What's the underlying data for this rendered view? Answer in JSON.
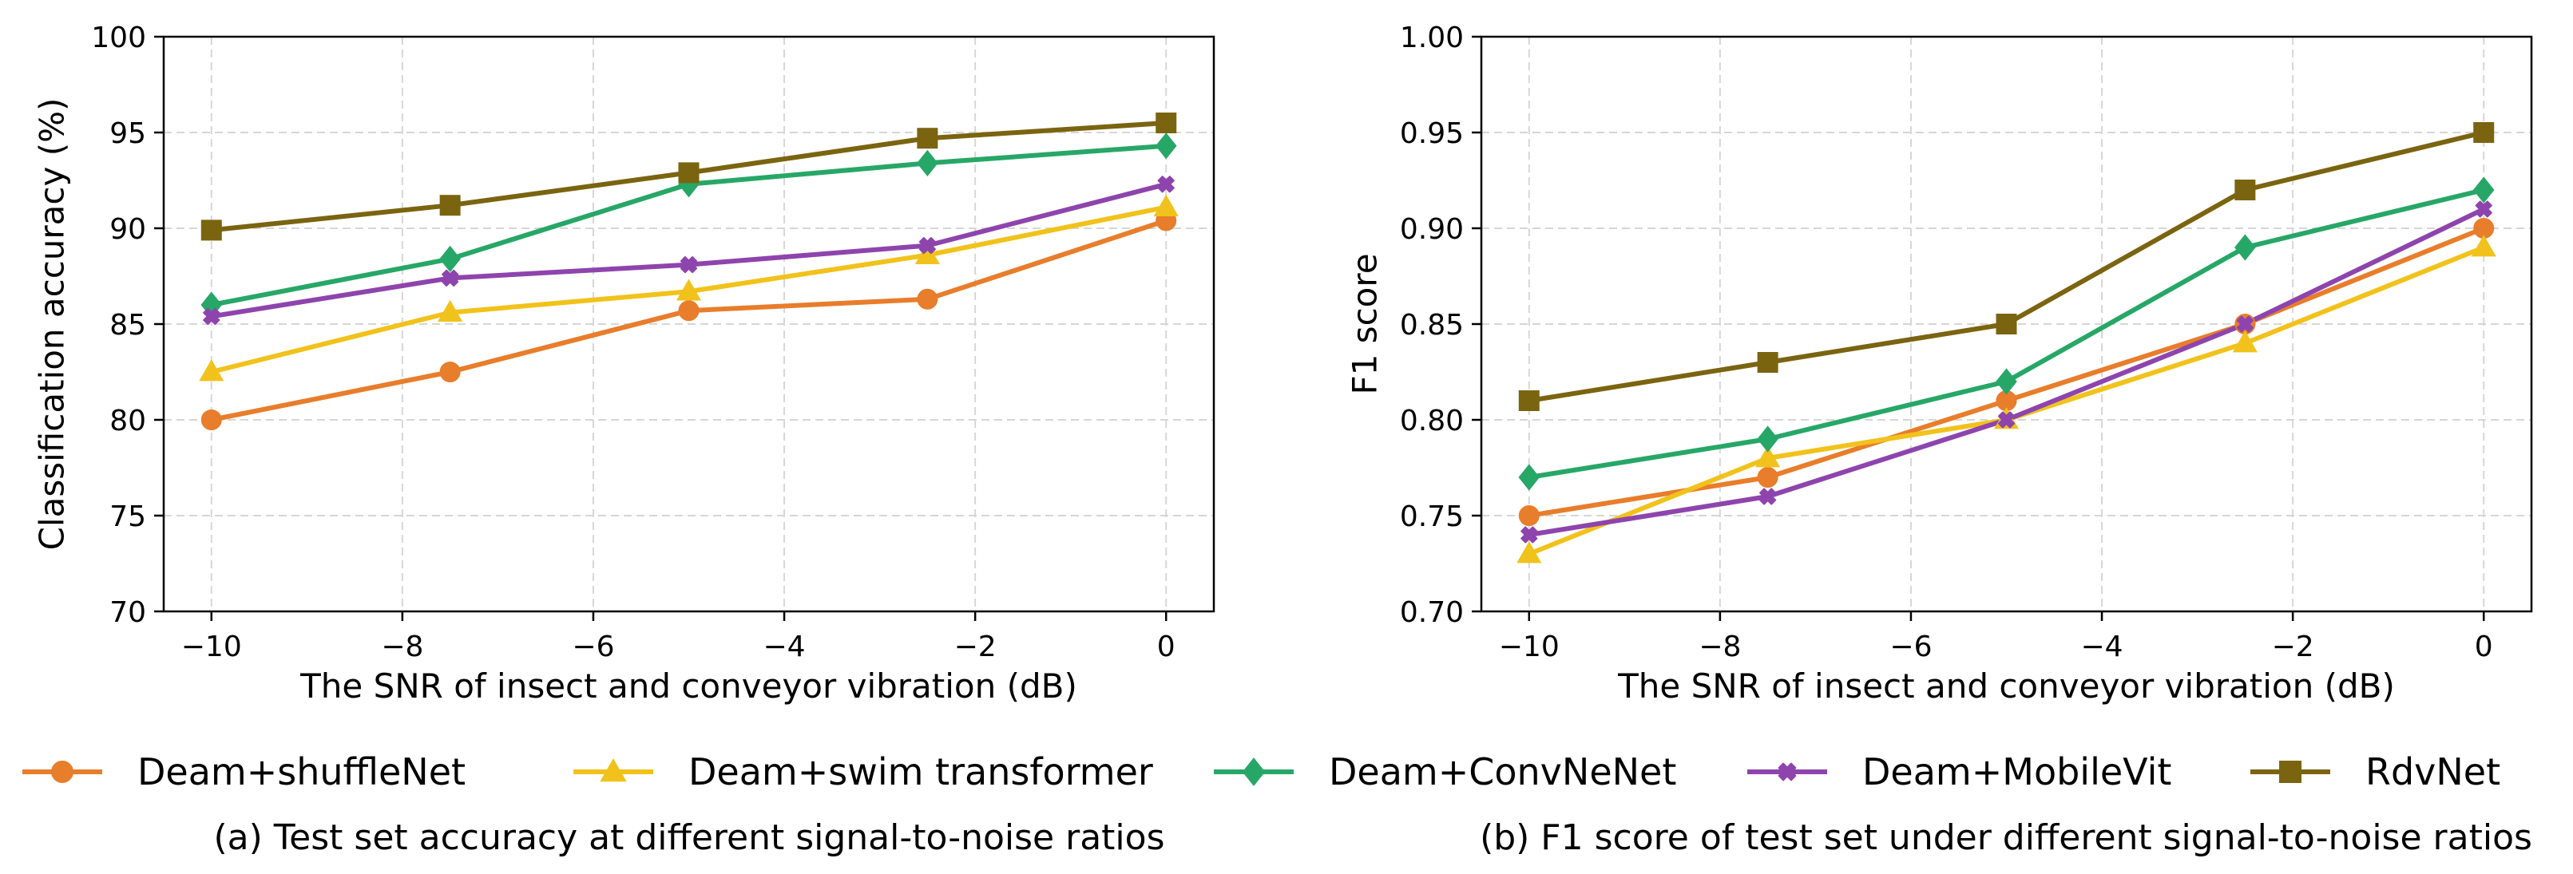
{
  "colors": {
    "shufflenet": "#E87D2B",
    "swim": "#F1C21B",
    "convnenet": "#27A767",
    "mobilevit": "#8E44AD",
    "rdvnet": "#7B6410"
  },
  "legend": [
    {
      "label": "Deam+shuffleNet",
      "marker": "circle",
      "color": "#E87D2B"
    },
    {
      "label": "Deam+swim transformer",
      "marker": "triangle",
      "color": "#F1C21B"
    },
    {
      "label": "Deam+ConvNeNet",
      "marker": "diamond",
      "color": "#27A767"
    },
    {
      "label": "Deam+MobileVit",
      "marker": "x",
      "color": "#8E44AD"
    },
    {
      "label": "RdvNet",
      "marker": "square",
      "color": "#7B6410"
    }
  ],
  "chart_data": [
    {
      "type": "line",
      "caption": "(a) Test set accuracy at different signal-to-noise ratios",
      "xlabel": "The SNR of insect and conveyor vibration (dB)",
      "ylabel": "Classification accuracy (%)",
      "xlim": [
        -10.5,
        0.5
      ],
      "ylim": [
        70,
        100
      ],
      "xticks": [
        -10,
        -8,
        -6,
        -4,
        -2,
        0
      ],
      "xtick_labels": [
        "−10",
        "−8",
        "−6",
        "−4",
        "−2",
        "0"
      ],
      "yticks": [
        70,
        75,
        80,
        85,
        90,
        95,
        100
      ],
      "ytick_labels": [
        "70",
        "75",
        "80",
        "85",
        "90",
        "95",
        "100"
      ],
      "grid": true,
      "x": [
        -10,
        -7.5,
        -5,
        -2.5,
        0
      ],
      "series": [
        {
          "name": "Deam+shuffleNet",
          "marker": "circle",
          "color": "#E87D2B",
          "values": [
            80.0,
            82.5,
            85.7,
            86.3,
            90.4
          ]
        },
        {
          "name": "Deam+swim transformer",
          "marker": "triangle",
          "color": "#F1C21B",
          "values": [
            82.5,
            85.6,
            86.7,
            88.6,
            91.1
          ]
        },
        {
          "name": "Deam+ConvNeNet",
          "marker": "diamond",
          "color": "#27A767",
          "values": [
            86.0,
            88.4,
            92.3,
            93.4,
            94.3
          ]
        },
        {
          "name": "Deam+MobileVit",
          "marker": "x",
          "color": "#8E44AD",
          "values": [
            85.4,
            87.4,
            88.1,
            89.1,
            92.3
          ]
        },
        {
          "name": "RdvNet",
          "marker": "square",
          "color": "#7B6410",
          "values": [
            89.9,
            91.2,
            92.9,
            94.7,
            95.5
          ]
        }
      ]
    },
    {
      "type": "line",
      "caption": "(b) F1 score of test set under different signal-to-noise ratios",
      "xlabel": "The SNR of insect and conveyor vibration (dB)",
      "ylabel": "F1 score",
      "xlim": [
        -10.5,
        0.5
      ],
      "ylim": [
        0.7,
        1.0
      ],
      "xticks": [
        -10,
        -8,
        -6,
        -4,
        -2,
        0
      ],
      "xtick_labels": [
        "−10",
        "−8",
        "−6",
        "−4",
        "−2",
        "0"
      ],
      "yticks": [
        0.7,
        0.75,
        0.8,
        0.85,
        0.9,
        0.95,
        1.0
      ],
      "ytick_labels": [
        "0.70",
        "0.75",
        "0.80",
        "0.85",
        "0.90",
        "0.95",
        "1.00"
      ],
      "grid": true,
      "x": [
        -10,
        -7.5,
        -5,
        -2.5,
        0
      ],
      "series": [
        {
          "name": "Deam+shuffleNet",
          "marker": "circle",
          "color": "#E87D2B",
          "values": [
            0.75,
            0.77,
            0.81,
            0.85,
            0.9
          ]
        },
        {
          "name": "Deam+swim transformer",
          "marker": "triangle",
          "color": "#F1C21B",
          "values": [
            0.73,
            0.78,
            0.8,
            0.84,
            0.89
          ]
        },
        {
          "name": "Deam+ConvNeNet",
          "marker": "diamond",
          "color": "#27A767",
          "values": [
            0.77,
            0.79,
            0.82,
            0.89,
            0.92
          ]
        },
        {
          "name": "Deam+MobileVit",
          "marker": "x",
          "color": "#8E44AD",
          "values": [
            0.74,
            0.76,
            0.8,
            0.85,
            0.91
          ]
        },
        {
          "name": "RdvNet",
          "marker": "square",
          "color": "#7B6410",
          "values": [
            0.81,
            0.83,
            0.85,
            0.92,
            0.95
          ]
        }
      ]
    }
  ]
}
